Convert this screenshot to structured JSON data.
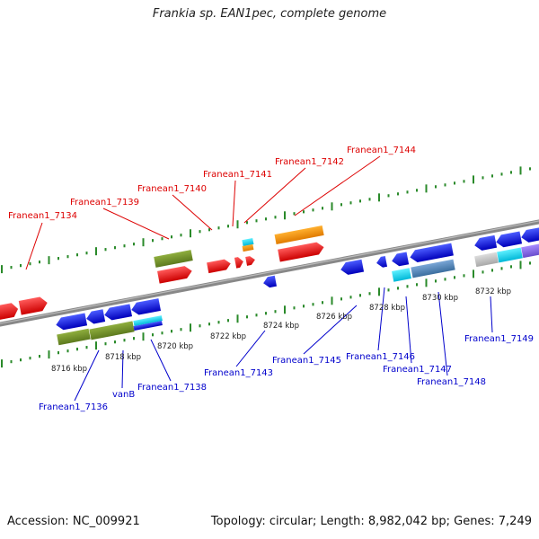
{
  "title": "Frankia sp. EAN1pec, complete genome",
  "footer": {
    "accession": "Accession: NC_009921",
    "summary": "Topology: circular; Length: 8,982,042 bp; Genes: 7,249"
  },
  "colors": {
    "forward_label": "#dd0000",
    "reverse_label": "#0000cc",
    "backbone": "#888888",
    "ruler": "#2a8a2a"
  },
  "genome_map": {
    "type": "linear genome track",
    "ruler_labels": [
      "8716 kbp",
      "8718 kbp",
      "8720 kbp",
      "8722 kbp",
      "8724 kbp",
      "8726 kbp",
      "8728 kbp",
      "8730 kbp",
      "8732 kbp"
    ],
    "forward_gene_labels": [
      "Franean1_7134",
      "Franean1_7139",
      "Franean1_7140",
      "Franean1_7141",
      "Franean1_7142",
      "Franean1_7144"
    ],
    "reverse_gene_labels": [
      "Franean1_7136",
      "vanB",
      "Franean1_7138",
      "Franean1_7143",
      "Franean1_7145",
      "Franean1_7146",
      "Franean1_7147",
      "Franean1_7148",
      "Franean1_7149"
    ]
  }
}
